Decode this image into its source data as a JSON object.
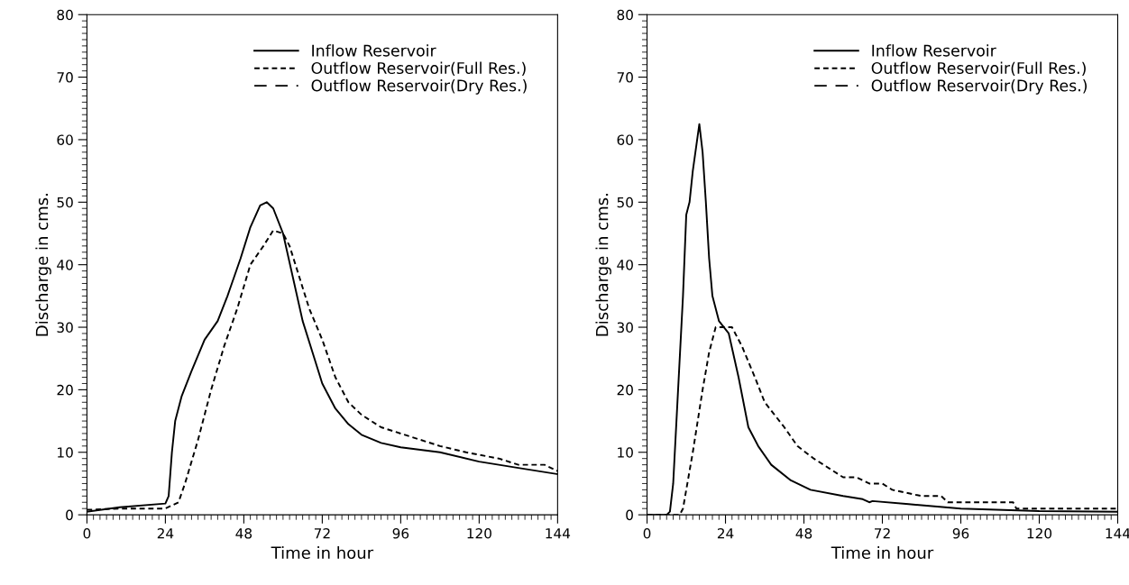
{
  "chart_data": [
    {
      "type": "line",
      "xlabel": "Time in hour",
      "ylabel": "Discharge in cms.",
      "xlim": [
        0,
        144
      ],
      "ylim": [
        0,
        80
      ],
      "xticks": [
        0,
        24,
        48,
        72,
        96,
        120,
        144
      ],
      "yticks": [
        0,
        10,
        20,
        30,
        40,
        50,
        60,
        70,
        80
      ],
      "grid": false,
      "legend": "top right",
      "marker": "none",
      "series": [
        {
          "name": "Inflow Reservoir",
          "color": "#000000",
          "line_style": "solid",
          "x": [
            0,
            10,
            24,
            25,
            26,
            27,
            29,
            32,
            36,
            40,
            43,
            47,
            50,
            53,
            55,
            57,
            60,
            63,
            66,
            69,
            72,
            76,
            80,
            84,
            90,
            96,
            108,
            120,
            132,
            144
          ],
          "values": [
            0.5,
            1.2,
            1.8,
            3,
            10,
            15,
            19,
            23,
            28,
            31,
            35,
            41,
            46,
            49.5,
            50,
            49,
            45,
            38,
            31,
            26,
            21,
            17,
            14.5,
            12.8,
            11.5,
            10.8,
            10,
            8.5,
            7.5,
            6.5
          ]
        },
        {
          "name": "Outflow Reservoir(Full Res.)",
          "color": "#000000",
          "line_style": "dotted",
          "x": [
            0,
            10,
            24,
            28,
            30,
            34,
            38,
            42,
            46,
            50,
            54,
            57,
            60,
            62,
            65,
            68,
            72,
            76,
            80,
            84,
            90,
            96,
            102,
            108,
            116,
            126,
            132,
            140,
            144
          ],
          "values": [
            0.8,
            1,
            1,
            2,
            5,
            12,
            20,
            27,
            33,
            40,
            43,
            45.5,
            45,
            43,
            38,
            33,
            28,
            22,
            18,
            16,
            14,
            13,
            12,
            11,
            10,
            9,
            8,
            8,
            7
          ]
        },
        {
          "name": "Outflow Reservoir(Dry Res.)",
          "color": "#000000",
          "line_style": "dashed"
        }
      ]
    },
    {
      "type": "line",
      "xlabel": "Time in hour",
      "ylabel": "Discharge in cms.",
      "xlim": [
        0,
        144
      ],
      "ylim": [
        0,
        80
      ],
      "xticks": [
        0,
        24,
        48,
        72,
        96,
        120,
        144
      ],
      "yticks": [
        0,
        10,
        20,
        30,
        40,
        50,
        60,
        70,
        80
      ],
      "grid": false,
      "legend": "top right",
      "marker": "none",
      "series": [
        {
          "name": "Inflow Reservoir",
          "color": "#000000",
          "line_style": "solid",
          "x": [
            0,
            6,
            7,
            8,
            9,
            10,
            11,
            12,
            13,
            14,
            16,
            17,
            18,
            19,
            20,
            22,
            25,
            28,
            31,
            34,
            38,
            44,
            50,
            60,
            66,
            68,
            69,
            80,
            96,
            120,
            144
          ],
          "values": [
            0,
            0,
            0.5,
            5,
            15,
            25,
            35,
            48,
            50,
            55,
            62.5,
            58,
            50,
            41,
            35,
            31,
            29,
            22,
            14,
            11,
            8,
            5.5,
            4,
            3,
            2.5,
            2,
            2.2,
            1.7,
            1,
            0.6,
            0.5
          ]
        },
        {
          "name": "Outflow Reservoir(Full Res.)",
          "color": "#000000",
          "line_style": "dotted",
          "x": [
            0,
            10,
            11,
            14,
            17,
            19,
            21,
            26,
            29,
            33,
            36,
            39,
            42,
            46,
            51,
            54,
            60,
            64,
            68,
            72,
            75,
            84,
            90,
            92,
            112,
            113,
            144
          ],
          "values": [
            0,
            0,
            1,
            10,
            20,
            26,
            30,
            30,
            27,
            22,
            18,
            16,
            14,
            11,
            9,
            8,
            6,
            6,
            5,
            5,
            4,
            3,
            3,
            2,
            2,
            1,
            1
          ]
        },
        {
          "name": "Outflow Reservoir(Dry Res.)",
          "color": "#000000",
          "line_style": "dashed"
        }
      ]
    }
  ]
}
